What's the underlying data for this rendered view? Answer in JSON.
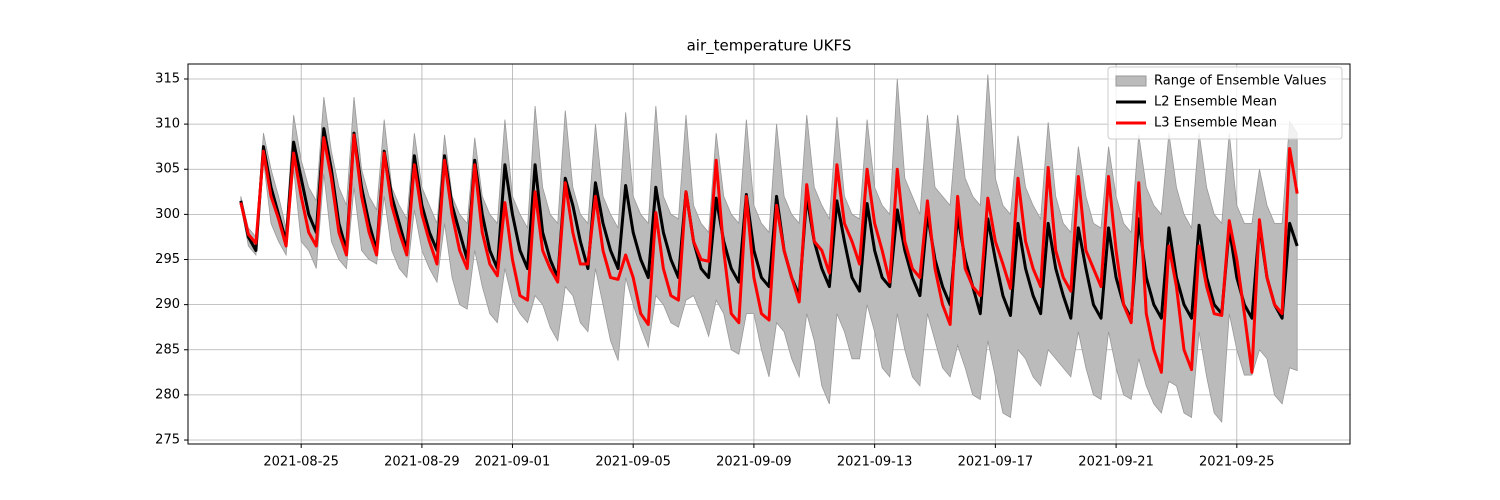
{
  "chart_data": {
    "type": "line",
    "title": "air_temperature UKFS",
    "x": [
      "2021-08-23 00:00",
      "2021-08-23 06:00",
      "2021-08-23 12:00",
      "2021-08-23 18:00",
      "2021-08-24 00:00",
      "2021-08-24 06:00",
      "2021-08-24 12:00",
      "2021-08-24 18:00",
      "2021-08-25 00:00",
      "2021-08-25 06:00",
      "2021-08-25 12:00",
      "2021-08-25 18:00",
      "2021-08-26 00:00",
      "2021-08-26 06:00",
      "2021-08-26 12:00",
      "2021-08-26 18:00",
      "2021-08-27 00:00",
      "2021-08-27 06:00",
      "2021-08-27 12:00",
      "2021-08-27 18:00",
      "2021-08-28 00:00",
      "2021-08-28 06:00",
      "2021-08-28 12:00",
      "2021-08-28 18:00",
      "2021-08-29 00:00",
      "2021-08-29 06:00",
      "2021-08-29 12:00",
      "2021-08-29 18:00",
      "2021-08-30 00:00",
      "2021-08-30 06:00",
      "2021-08-30 12:00",
      "2021-08-30 18:00",
      "2021-08-31 00:00",
      "2021-08-31 06:00",
      "2021-08-31 12:00",
      "2021-08-31 18:00",
      "2021-09-01 00:00",
      "2021-09-01 06:00",
      "2021-09-01 12:00",
      "2021-09-01 18:00",
      "2021-09-02 00:00",
      "2021-09-02 06:00",
      "2021-09-02 12:00",
      "2021-09-02 18:00",
      "2021-09-03 00:00",
      "2021-09-03 06:00",
      "2021-09-03 12:00",
      "2021-09-03 18:00",
      "2021-09-04 00:00",
      "2021-09-04 06:00",
      "2021-09-04 12:00",
      "2021-09-04 18:00",
      "2021-09-05 00:00",
      "2021-09-05 06:00",
      "2021-09-05 12:00",
      "2021-09-05 18:00",
      "2021-09-06 00:00",
      "2021-09-06 06:00",
      "2021-09-06 12:00",
      "2021-09-06 18:00",
      "2021-09-07 00:00",
      "2021-09-07 06:00",
      "2021-09-07 12:00",
      "2021-09-07 18:00",
      "2021-09-08 00:00",
      "2021-09-08 06:00",
      "2021-09-08 12:00",
      "2021-09-08 18:00",
      "2021-09-09 00:00",
      "2021-09-09 06:00",
      "2021-09-09 12:00",
      "2021-09-09 18:00",
      "2021-09-10 00:00",
      "2021-09-10 06:00",
      "2021-09-10 12:00",
      "2021-09-10 18:00",
      "2021-09-11 00:00",
      "2021-09-11 06:00",
      "2021-09-11 12:00",
      "2021-09-11 18:00",
      "2021-09-12 00:00",
      "2021-09-12 06:00",
      "2021-09-12 12:00",
      "2021-09-12 18:00",
      "2021-09-13 00:00",
      "2021-09-13 06:00",
      "2021-09-13 12:00",
      "2021-09-13 18:00",
      "2021-09-14 00:00",
      "2021-09-14 06:00",
      "2021-09-14 12:00",
      "2021-09-14 18:00",
      "2021-09-15 00:00",
      "2021-09-15 06:00",
      "2021-09-15 12:00",
      "2021-09-15 18:00",
      "2021-09-16 00:00",
      "2021-09-16 06:00",
      "2021-09-16 12:00",
      "2021-09-16 18:00",
      "2021-09-17 00:00",
      "2021-09-17 06:00",
      "2021-09-17 12:00",
      "2021-09-17 18:00",
      "2021-09-18 00:00",
      "2021-09-18 06:00",
      "2021-09-18 12:00",
      "2021-09-18 18:00",
      "2021-09-19 00:00",
      "2021-09-19 06:00",
      "2021-09-19 12:00",
      "2021-09-19 18:00",
      "2021-09-20 00:00",
      "2021-09-20 06:00",
      "2021-09-20 12:00",
      "2021-09-20 18:00",
      "2021-09-21 00:00",
      "2021-09-21 06:00",
      "2021-09-21 12:00",
      "2021-09-21 18:00",
      "2021-09-22 00:00",
      "2021-09-22 06:00",
      "2021-09-22 12:00",
      "2021-09-22 18:00",
      "2021-09-23 00:00",
      "2021-09-23 06:00",
      "2021-09-23 12:00",
      "2021-09-23 18:00",
      "2021-09-24 00:00",
      "2021-09-24 06:00",
      "2021-09-24 12:00",
      "2021-09-24 18:00",
      "2021-09-25 00:00",
      "2021-09-25 06:00",
      "2021-09-25 12:00",
      "2021-09-25 18:00",
      "2021-09-26 00:00",
      "2021-09-26 06:00",
      "2021-09-26 12:00",
      "2021-09-26 18:00",
      "2021-09-27 00:00"
    ],
    "series": [
      {
        "name": "Range of Ensemble Values",
        "type": "band",
        "color": "#bbbbbb",
        "edge_color": "#999999",
        "lower": [
          301,
          296.5,
          295.5,
          306,
          299,
          297,
          295.5,
          305,
          297,
          296,
          294,
          304.5,
          297,
          295,
          294,
          303,
          296,
          295,
          294.5,
          302,
          296,
          294,
          293,
          300.5,
          296,
          294,
          292.5,
          299,
          293,
          290,
          289.5,
          296,
          292,
          289,
          288,
          294,
          290.5,
          289,
          288,
          291,
          290,
          287.5,
          286,
          292,
          291,
          288,
          287,
          294,
          290,
          286,
          283.8,
          293,
          290,
          287.5,
          285.3,
          291,
          290,
          288,
          287.5,
          290.5,
          291,
          289,
          286.5,
          290.5,
          289,
          285,
          284.5,
          289,
          289,
          285,
          282,
          288,
          287,
          284,
          282,
          289,
          286,
          281,
          279,
          289,
          287,
          284,
          284,
          290,
          287,
          283,
          282,
          289,
          285,
          282,
          281,
          289,
          286,
          283,
          282,
          285.5,
          283,
          280,
          279.5,
          286,
          282,
          278,
          277.5,
          285,
          284,
          282,
          281,
          285,
          284,
          283,
          282,
          287,
          283,
          280,
          279.5,
          287,
          283,
          280,
          279.5,
          284,
          281,
          279,
          278,
          281.5,
          281,
          278,
          277.5,
          287,
          282,
          278,
          277,
          289,
          285,
          282.2,
          282.2,
          285,
          284,
          280,
          279,
          283,
          282.7
        ],
        "upper": [
          302,
          298.5,
          297.5,
          309,
          305,
          302,
          298.5,
          311,
          306,
          303,
          301.5,
          313,
          307,
          303,
          301,
          313,
          305,
          302,
          300.5,
          310.5,
          303,
          301,
          299.5,
          309,
          303,
          301,
          299,
          308.8,
          302,
          300,
          299,
          308.5,
          302,
          300,
          299,
          310.5,
          302,
          300,
          298.5,
          312,
          303,
          300,
          299,
          311.5,
          303,
          300,
          299,
          310,
          302,
          300,
          298.5,
          311.3,
          302,
          300,
          299,
          312,
          302,
          300,
          299.5,
          311,
          301,
          299,
          298,
          309,
          302,
          300,
          299,
          310.5,
          301,
          299,
          298,
          310,
          302,
          300,
          299,
          311,
          303,
          301,
          299.5,
          310.8,
          302,
          300,
          299.5,
          310.5,
          303,
          301,
          300,
          315,
          304,
          302,
          300,
          311,
          303,
          302,
          301,
          311,
          304,
          302,
          301,
          315.5,
          304,
          301,
          300,
          308.7,
          303,
          301,
          299.5,
          310.2,
          302,
          299,
          298,
          307.5,
          302,
          299,
          298.5,
          307.5,
          302,
          299,
          298,
          308.8,
          303,
          301,
          300,
          309,
          303,
          300,
          298.5,
          309,
          303,
          300,
          299,
          309,
          301,
          299,
          299,
          305,
          301,
          299,
          299,
          310.3,
          309
        ]
      },
      {
        "name": "L2 Ensemble Mean",
        "color": "#000000",
        "values": [
          301.5,
          297.5,
          296,
          307.5,
          303,
          300,
          297,
          308,
          304,
          300,
          298,
          309.5,
          305,
          299,
          296,
          309,
          303,
          299,
          296,
          307,
          302,
          299,
          296,
          306.5,
          301,
          298,
          296,
          306.5,
          301,
          298,
          295,
          306,
          300,
          296,
          294,
          305.5,
          300,
          296,
          294,
          305.5,
          298,
          295,
          293,
          304,
          301,
          297,
          294,
          303.5,
          299,
          296,
          294,
          303.2,
          298,
          295,
          293,
          303,
          298,
          295,
          293,
          302.5,
          297,
          294,
          293,
          301.8,
          297,
          294,
          292.5,
          302.2,
          296,
          293,
          292,
          302,
          296,
          293,
          291,
          302,
          297,
          294,
          292,
          301.5,
          297,
          293,
          291.5,
          301.2,
          296,
          293,
          292,
          300.5,
          296,
          293,
          291,
          300,
          295,
          292,
          290,
          299.8,
          295,
          292,
          289,
          299.5,
          295,
          291,
          288.8,
          299,
          294,
          291,
          289,
          299,
          294,
          291,
          288.5,
          298.5,
          294,
          290,
          288.5,
          298.5,
          293,
          290,
          288.5,
          299.5,
          293,
          290,
          288.5,
          298.5,
          293,
          290,
          288.5,
          298.8,
          293,
          290,
          289,
          298.5,
          293,
          290,
          288.5,
          298.8,
          293,
          290,
          288.5,
          299,
          296.5
        ]
      },
      {
        "name": "L3 Ensemble Mean",
        "color": "#ff0000",
        "values": [
          301.3,
          297.8,
          296.8,
          307,
          302,
          299.5,
          296.5,
          306.8,
          302,
          298,
          296.5,
          308.5,
          304,
          298,
          295.5,
          308.8,
          302,
          298,
          295.5,
          306.8,
          301,
          298,
          295.5,
          305.5,
          300,
          297,
          294.5,
          306,
          300,
          296,
          294,
          305.5,
          298,
          294.5,
          293.2,
          301.3,
          295,
          291,
          290.5,
          302.5,
          296,
          294,
          292.5,
          303.5,
          298,
          294.5,
          294.5,
          302,
          296,
          293,
          292.8,
          295.5,
          293,
          289,
          287.8,
          300.2,
          294,
          291,
          290.5,
          302.5,
          297,
          295,
          294.8,
          306,
          296,
          289,
          288,
          302,
          293,
          289,
          288.3,
          301,
          296,
          293,
          290.3,
          303.3,
          297,
          296,
          293.5,
          305.5,
          299,
          297,
          294.5,
          305,
          299,
          296,
          292.5,
          305,
          297,
          294,
          293,
          301.5,
          294,
          290,
          287.8,
          302,
          294,
          292,
          291,
          301.8,
          297,
          294.5,
          291.8,
          304,
          297,
          294,
          292,
          305.2,
          296,
          293,
          291.5,
          304.2,
          296,
          294,
          292,
          304.2,
          296,
          290,
          288,
          303.5,
          289,
          285,
          282.5,
          296.5,
          292,
          285,
          282.8,
          296.5,
          292,
          289,
          288.8,
          299.3,
          295,
          289,
          282.5,
          299.4,
          293,
          290,
          289,
          307.3,
          302.3
        ]
      }
    ],
    "xlim": [
      "2021-08-21 06:00",
      "2021-09-28 18:00"
    ],
    "xticks": [
      "2021-08-25",
      "2021-08-29",
      "2021-09-01",
      "2021-09-05",
      "2021-09-09",
      "2021-09-13",
      "2021-09-17",
      "2021-09-21",
      "2021-09-25"
    ],
    "ylim": [
      274.56,
      316.66
    ],
    "yticks": [
      275,
      280,
      285,
      290,
      295,
      300,
      305,
      310,
      315
    ],
    "grid": true,
    "legend": "upper right"
  }
}
